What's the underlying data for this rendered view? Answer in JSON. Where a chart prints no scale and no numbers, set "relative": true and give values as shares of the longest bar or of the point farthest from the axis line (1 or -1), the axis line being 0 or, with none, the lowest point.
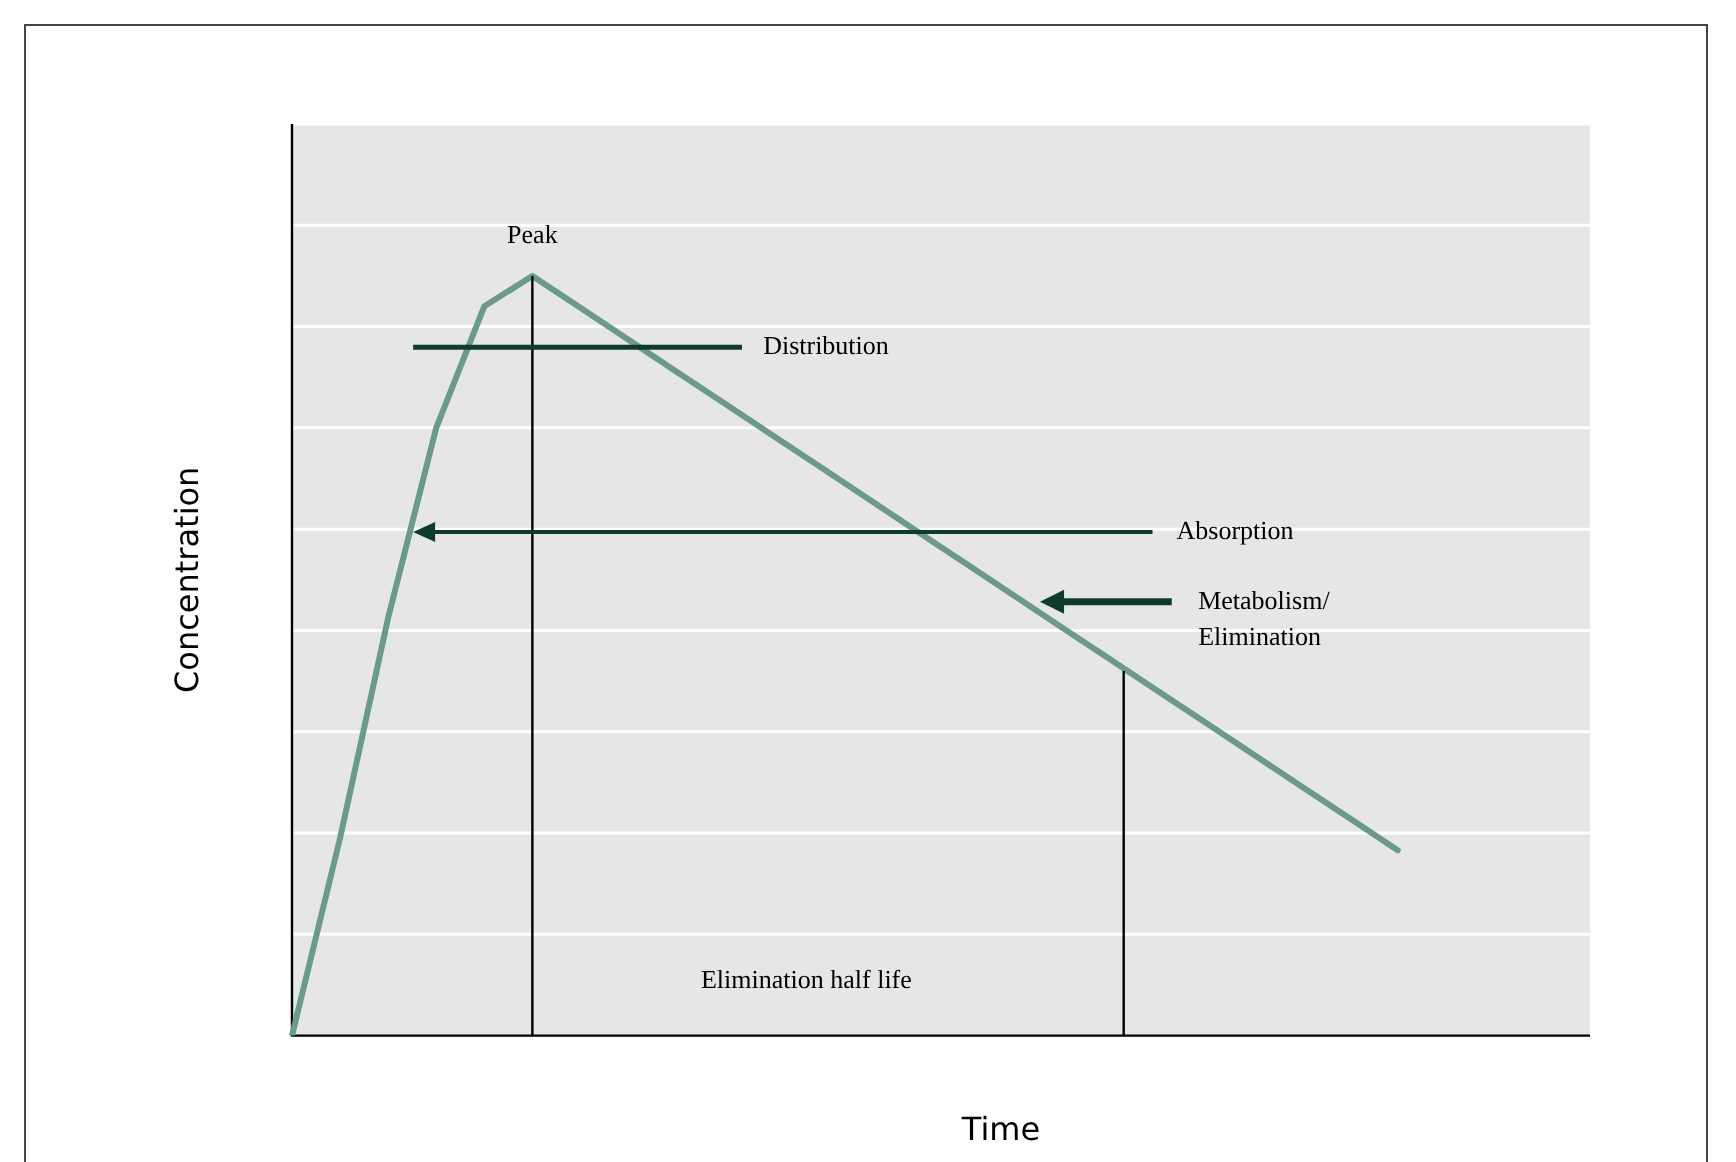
{
  "chart_data": {
    "type": "line",
    "relative": true,
    "xlabel": "Time",
    "ylabel": "Concentration",
    "grid": "y",
    "categories": [
      null,
      null,
      null,
      null,
      null,
      null,
      null,
      null,
      null,
      null,
      null,
      null,
      null,
      null,
      null,
      null,
      null,
      null,
      null,
      null,
      null,
      null,
      null,
      null,
      null,
      null,
      null,
      null
    ],
    "series": [
      {
        "color": "#6b9a8d",
        "values": [
          0,
          0.26,
          0.55,
          0.8,
          0.96,
          1,
          0.958,
          0.916,
          0.874,
          0.832,
          0.79,
          0.748,
          0.706,
          0.664,
          0.622,
          0.58,
          0.538,
          0.496,
          0.454,
          0.412,
          0.37,
          0.328,
          0.286,
          0.244,
          null,
          null,
          null,
          null
        ]
      }
    ],
    "annotations": [
      "Peak",
      "Distribution",
      "Absorption",
      "Metabolism/ Elimination",
      "Elimination half life"
    ]
  }
}
